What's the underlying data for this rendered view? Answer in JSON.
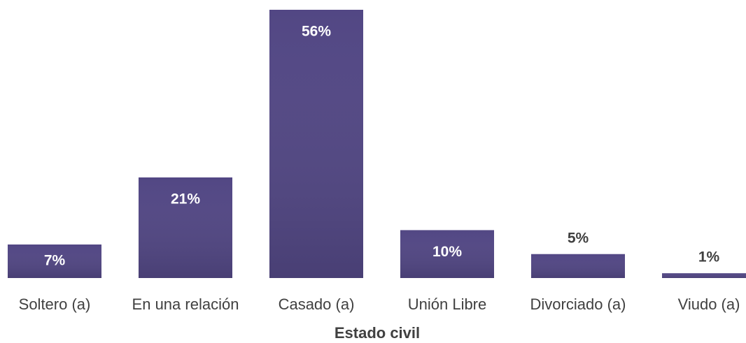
{
  "chart_data": {
    "type": "bar",
    "x_label": "Estado civil",
    "categories": [
      "Soltero (a)",
      "En una relación",
      "Casado (a)",
      "Unión Libre",
      "Divorciado (a)",
      "Viudo (a)"
    ],
    "values": [
      7,
      21,
      56,
      10,
      5,
      1
    ],
    "value_labels": [
      "7%",
      "21%",
      "56%",
      "10%",
      "5%",
      "1%"
    ],
    "color": "#524784"
  }
}
